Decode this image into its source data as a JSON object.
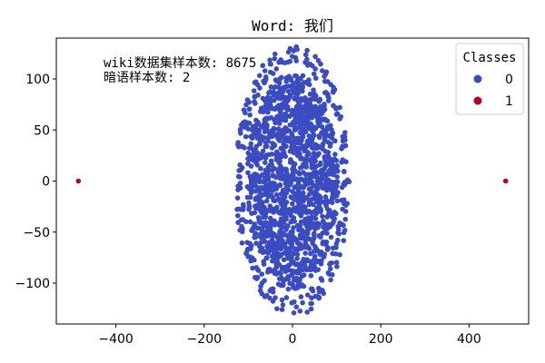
{
  "chart_data": {
    "type": "scatter",
    "title": "Word: 我们",
    "xlabel": "",
    "ylabel": "",
    "xlim": [
      -535,
      535
    ],
    "ylim": [
      -140,
      140
    ],
    "xticks": [
      -400,
      -200,
      0,
      200,
      400
    ],
    "yticks": [
      -100,
      -50,
      0,
      50,
      100
    ],
    "xtick_labels": [
      "−400",
      "−200",
      "0",
      "200",
      "400"
    ],
    "ytick_labels": [
      "−100",
      "−50",
      "0",
      "50",
      "100"
    ],
    "grid": false,
    "annotations": [
      "wiki数据集样本数: 8675",
      "暗语样本数: 2"
    ],
    "legend": {
      "title": "Classes",
      "placement": "upper right",
      "entries": [
        {
          "label": "0",
          "color": "#3b4cc0"
        },
        {
          "label": "1",
          "color": "#b40426"
        }
      ]
    },
    "series": [
      {
        "class": "0",
        "color": "#3b4cc0",
        "count": 8675,
        "distribution": {
          "shape": "ellipse",
          "center": [
            0,
            0
          ],
          "x_extent": 130,
          "y_extent": 133
        },
        "points_sampled": true
      },
      {
        "class": "1",
        "color": "#b40426",
        "count": 2,
        "points": [
          {
            "x": -485,
            "y": 0
          },
          {
            "x": 483,
            "y": 0
          }
        ]
      }
    ]
  }
}
